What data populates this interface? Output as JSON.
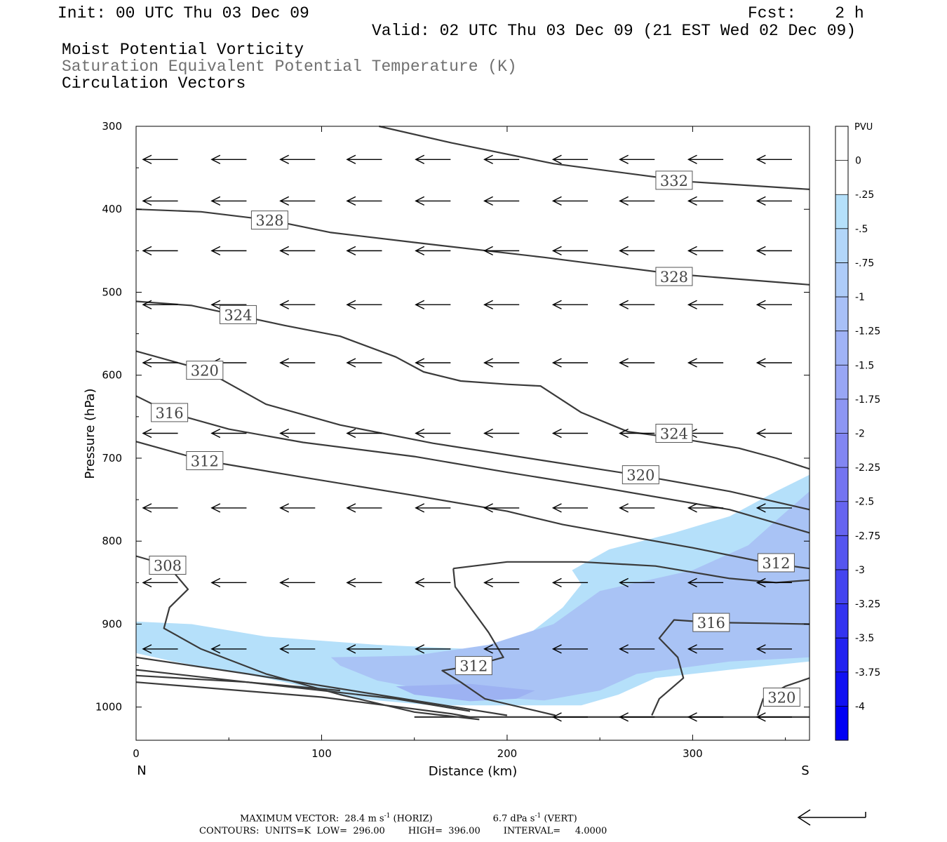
{
  "header": {
    "init": "Init: 00 UTC Thu 03 Dec 09",
    "fcst": "Fcst:    2 h",
    "valid": "Valid: 02 UTC Thu 03 Dec 09 (21 EST Wed 02 Dec 09)",
    "line1": "Moist Potential Vorticity",
    "line2": "Saturation Equivalent Potential Temperature (K)",
    "line3": "Circulation Vectors"
  },
  "colors": {
    "contour": "#3a3a3a",
    "fill_light": "#b5e0fa",
    "fill_mid": "#a9c3f5",
    "fill_dark": "#9db2f2"
  },
  "chart_data": {
    "type": "cross-section",
    "xlabel": "Distance (km)",
    "ylabel": "Pressure (hPa)",
    "xlim": [
      0,
      363
    ],
    "ylim": [
      300,
      1040
    ],
    "x_ticks": [
      0,
      100,
      200,
      300
    ],
    "y_ticks": [
      300,
      400,
      500,
      600,
      700,
      800,
      900,
      1000
    ],
    "x_end_labels": {
      "left": "N",
      "right": "S"
    },
    "colorbar": {
      "units": "PVU",
      "levels": [
        "0",
        "-.25",
        "-.5",
        "-.75",
        "-1",
        "-1.25",
        "-1.5",
        "-1.75",
        "-2",
        "-2.25",
        "-2.5",
        "-2.75",
        "-3",
        "-3.25",
        "-3.5",
        "-3.75",
        "-4"
      ],
      "colors": [
        "#ffffff",
        "#ffffff",
        "#b5e0fa",
        "#b2d6f9",
        "#aeccf8",
        "#a8c0f7",
        "#a0b3f6",
        "#98a6f5",
        "#8d96f3",
        "#8286f2",
        "#7474f1",
        "#6664f0",
        "#5555ef",
        "#4444ef",
        "#3333f0",
        "#2222f1",
        "#1111f2",
        "#0000f4"
      ]
    },
    "theta_es_contours": [
      {
        "label": "332",
        "label_at": [
          290,
          365
        ],
        "points": [
          [
            131,
            300
          ],
          [
            170,
            320
          ],
          [
            225,
            345
          ],
          [
            300,
            367
          ],
          [
            363,
            376
          ]
        ]
      },
      {
        "label": "328",
        "label_at": [
          72,
          413
        ],
        "points": [
          [
            0,
            400
          ],
          [
            35,
            403
          ],
          [
            72,
            413
          ],
          [
            105,
            428
          ],
          [
            150,
            440
          ],
          [
            220,
            458
          ],
          [
            290,
            478
          ],
          [
            363,
            491
          ]
        ]
      },
      {
        "label": "328",
        "label_at": [
          290,
          481
        ],
        "points": []
      },
      {
        "label": "324",
        "label_at": [
          55,
          527
        ],
        "points": [
          [
            0,
            511
          ],
          [
            30,
            516
          ],
          [
            80,
            540
          ],
          [
            110,
            553
          ],
          [
            140,
            578
          ],
          [
            155,
            596
          ],
          [
            175,
            607
          ],
          [
            200,
            611
          ],
          [
            218,
            613
          ],
          [
            240,
            645
          ],
          [
            265,
            668
          ],
          [
            295,
            677
          ],
          [
            325,
            688
          ],
          [
            345,
            700
          ],
          [
            363,
            713
          ]
        ]
      },
      {
        "label": "324",
        "label_at": [
          290,
          670
        ],
        "points": []
      },
      {
        "label": "320",
        "label_at": [
          37,
          594
        ],
        "points": [
          [
            0,
            571
          ],
          [
            37,
            594
          ],
          [
            70,
            635
          ],
          [
            110,
            660
          ],
          [
            160,
            682
          ],
          [
            220,
            703
          ],
          [
            272,
            721
          ],
          [
            320,
            740
          ],
          [
            363,
            762
          ]
        ]
      },
      {
        "label": "320",
        "label_at": [
          272,
          720
        ],
        "points": []
      },
      {
        "label": "316",
        "label_at": [
          18,
          645
        ],
        "points": [
          [
            0,
            625
          ],
          [
            18,
            645
          ],
          [
            50,
            665
          ],
          [
            90,
            681
          ],
          [
            150,
            698
          ],
          [
            200,
            717
          ],
          [
            250,
            735
          ],
          [
            320,
            762
          ],
          [
            363,
            790
          ]
        ]
      },
      {
        "label": "312",
        "label_at": [
          37,
          703
        ],
        "points": [
          [
            0,
            680
          ],
          [
            37,
            703
          ],
          [
            90,
            723
          ],
          [
            150,
            745
          ],
          [
            200,
            764
          ],
          [
            230,
            780
          ],
          [
            260,
            792
          ],
          [
            300,
            808
          ],
          [
            340,
            826
          ],
          [
            363,
            833
          ]
        ]
      },
      {
        "label": "312",
        "label_at": [
          345,
          826
        ],
        "points": []
      },
      {
        "label": "308",
        "label_at": [
          17,
          829
        ],
        "points": [
          [
            0,
            818
          ],
          [
            17,
            829
          ],
          [
            28,
            858
          ],
          [
            18,
            880
          ],
          [
            15,
            905
          ],
          [
            35,
            930
          ],
          [
            70,
            960
          ],
          [
            110,
            985
          ],
          [
            150,
            1006
          ],
          [
            185,
            1015
          ]
        ]
      },
      {
        "label": "312",
        "label_at": [
          182,
          950
        ],
        "points": [
          [
            171,
            833
          ],
          [
            172,
            855
          ],
          [
            190,
            910
          ],
          [
            198,
            940
          ],
          [
            182,
            950
          ],
          [
            165,
            956
          ],
          [
            175,
            970
          ],
          [
            188,
            990
          ],
          [
            226,
            1010
          ]
        ]
      },
      {
        "label": "",
        "label_at": null,
        "points": [
          [
            171,
            833
          ],
          [
            200,
            825
          ],
          [
            240,
            825
          ],
          [
            280,
            830
          ],
          [
            320,
            845
          ],
          [
            345,
            850
          ],
          [
            363,
            847
          ]
        ]
      },
      {
        "label": "316",
        "label_at": [
          310,
          898
        ],
        "points": [
          [
            363,
            900
          ],
          [
            340,
            899
          ],
          [
            310,
            898
          ],
          [
            290,
            895
          ],
          [
            282,
            917
          ],
          [
            292,
            940
          ],
          [
            295,
            965
          ],
          [
            282,
            990
          ],
          [
            278,
            1010
          ]
        ]
      },
      {
        "label": "320",
        "label_at": [
          348,
          988
        ],
        "points": [
          [
            335,
            1010
          ],
          [
            338,
            990
          ],
          [
            350,
            975
          ],
          [
            363,
            965
          ]
        ]
      },
      {
        "label": "",
        "label_at": null,
        "points": [
          [
            0,
            940
          ],
          [
            60,
            960
          ],
          [
            130,
            985
          ],
          [
            200,
            1010
          ]
        ]
      },
      {
        "label": "",
        "label_at": null,
        "points": [
          [
            0,
            955
          ],
          [
            80,
            975
          ],
          [
            140,
            990
          ],
          [
            180,
            1005
          ]
        ]
      },
      {
        "label": "",
        "label_at": null,
        "points": [
          [
            0,
            962
          ],
          [
            60,
            970
          ],
          [
            110,
            980
          ]
        ]
      },
      {
        "label": "",
        "label_at": null,
        "points": [
          [
            0,
            970
          ],
          [
            100,
            988
          ],
          [
            170,
            1008
          ],
          [
            180,
            1012
          ]
        ]
      },
      {
        "label": "",
        "label_at": null,
        "points": [
          [
            150,
            1012
          ],
          [
            363,
            1012
          ]
        ]
      }
    ],
    "pv_fill_regions": [
      {
        "pvu": -0.25,
        "points": [
          [
            0,
            897
          ],
          [
            30,
            900
          ],
          [
            70,
            915
          ],
          [
            130,
            925
          ],
          [
            180,
            930
          ],
          [
            210,
            915
          ],
          [
            230,
            880
          ],
          [
            240,
            852
          ],
          [
            235,
            835
          ],
          [
            255,
            810
          ],
          [
            290,
            790
          ],
          [
            320,
            770
          ],
          [
            345,
            740
          ],
          [
            363,
            720
          ],
          [
            363,
            945
          ],
          [
            320,
            955
          ],
          [
            280,
            965
          ],
          [
            260,
            985
          ],
          [
            240,
            998
          ],
          [
            200,
            998
          ],
          [
            160,
            998
          ],
          [
            120,
            990
          ],
          [
            70,
            965
          ],
          [
            20,
            945
          ],
          [
            0,
            935
          ]
        ]
      },
      {
        "pvu": -0.5,
        "points": [
          [
            105,
            940
          ],
          [
            150,
            938
          ],
          [
            190,
            925
          ],
          [
            225,
            900
          ],
          [
            250,
            860
          ],
          [
            300,
            835
          ],
          [
            330,
            805
          ],
          [
            345,
            775
          ],
          [
            363,
            740
          ],
          [
            363,
            940
          ],
          [
            320,
            945
          ],
          [
            270,
            960
          ],
          [
            250,
            980
          ],
          [
            220,
            992
          ],
          [
            170,
            985
          ],
          [
            130,
            968
          ],
          [
            110,
            950
          ]
        ]
      },
      {
        "pvu": -0.75,
        "points": [
          [
            140,
            975
          ],
          [
            180,
            972
          ],
          [
            215,
            980
          ],
          [
            205,
            990
          ],
          [
            180,
            993
          ],
          [
            150,
            985
          ]
        ]
      }
    ],
    "vector_rows": [
      {
        "p": 340,
        "xs": [
          0,
          37,
          74,
          110,
          147,
          184,
          221,
          257,
          294,
          331
        ]
      },
      {
        "p": 390,
        "xs": [
          0,
          37,
          74,
          110,
          147,
          184,
          221,
          257,
          294,
          331
        ]
      },
      {
        "p": 450,
        "xs": [
          0,
          37,
          74,
          110,
          147,
          184,
          221,
          257,
          294,
          331
        ]
      },
      {
        "p": 515,
        "xs": [
          0,
          37,
          74,
          110,
          147,
          184,
          221,
          257,
          294,
          331
        ]
      },
      {
        "p": 585,
        "xs": [
          0,
          37,
          74,
          110,
          147,
          184,
          221,
          257,
          294,
          331
        ]
      },
      {
        "p": 670,
        "xs": [
          0,
          37,
          74,
          110,
          147,
          184,
          221,
          257,
          294,
          331
        ]
      },
      {
        "p": 760,
        "xs": [
          0,
          37,
          74,
          110,
          147,
          184,
          221,
          257,
          294,
          331
        ]
      },
      {
        "p": 850,
        "xs": [
          0,
          37,
          74,
          110,
          147,
          184,
          221,
          257,
          294,
          331
        ]
      },
      {
        "p": 930,
        "xs": [
          0,
          37,
          74,
          110,
          147,
          184,
          221,
          257,
          294,
          331
        ]
      },
      {
        "p": 1012,
        "xs": [
          221,
          257,
          294,
          331
        ]
      }
    ],
    "vector_length_km": 25
  },
  "footer": {
    "max_vector_prefix": "MAXIMUM VECTOR:  28.4 m s",
    "max_vector_horiz": " (HORIZ)",
    "max_vector_vert_prefix": "6.7 dPa s",
    "max_vector_vert": " (VERT)",
    "exp": "-1",
    "contours": "CONTOURS:  UNITS=K  LOW=  296.00        HIGH=  396.00        INTERVAL=     4.0000"
  }
}
